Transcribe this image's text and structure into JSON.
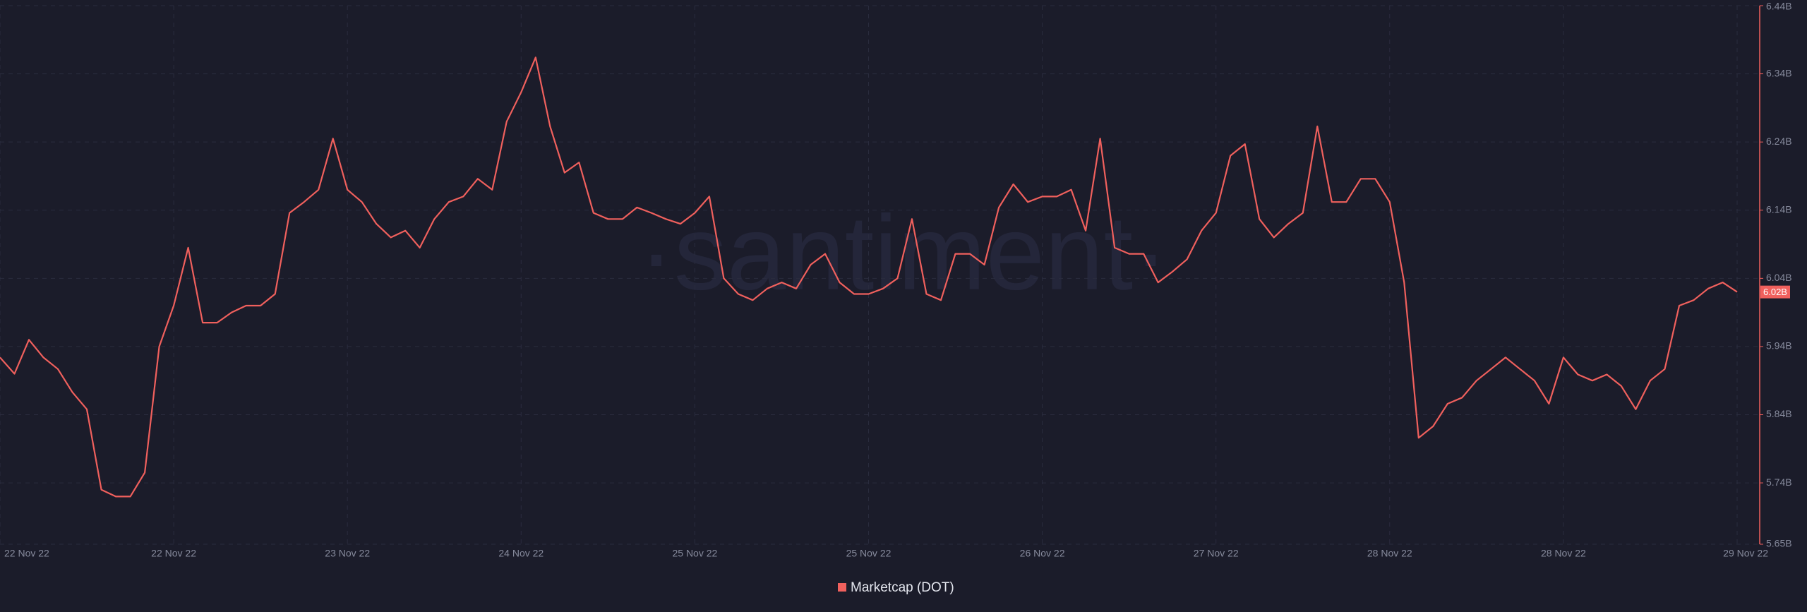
{
  "chart_data": {
    "type": "line",
    "watermark": "·santiment·",
    "background": "#1b1c2a",
    "grid": true,
    "categories": [
      "22 Nov 22",
      null,
      null,
      null,
      null,
      null,
      null,
      null,
      null,
      null,
      null,
      null,
      "22 Nov 22",
      null,
      null,
      null,
      null,
      null,
      null,
      null,
      null,
      null,
      null,
      null,
      "23 Nov 22",
      null,
      null,
      null,
      null,
      null,
      null,
      null,
      null,
      null,
      null,
      null,
      "24 Nov 22",
      null,
      null,
      null,
      null,
      null,
      null,
      null,
      null,
      null,
      null,
      null,
      "25 Nov 22",
      null,
      null,
      null,
      null,
      null,
      null,
      null,
      null,
      null,
      null,
      null,
      "25 Nov 22",
      null,
      null,
      null,
      null,
      null,
      null,
      null,
      null,
      null,
      null,
      null,
      "26 Nov 22",
      null,
      null,
      null,
      null,
      null,
      null,
      null,
      null,
      null,
      null,
      null,
      "27 Nov 22",
      null,
      null,
      null,
      null,
      null,
      null,
      null,
      null,
      null,
      null,
      null,
      "28 Nov 22",
      null,
      null,
      null,
      null,
      null,
      null,
      null,
      null,
      null,
      null,
      null,
      "28 Nov 22",
      null,
      null,
      null,
      null,
      null,
      null,
      null,
      null,
      null,
      null,
      null,
      "29 Nov 22"
    ],
    "series": [
      {
        "name": "Marketcap (DOT)",
        "color": "#f0605d",
        "values": [
          5.924,
          5.9,
          5.95,
          5.924,
          5.907,
          5.873,
          5.848,
          5.73,
          5.72,
          5.72,
          5.755,
          5.94,
          6.0,
          6.085,
          5.975,
          5.975,
          5.99,
          6.0,
          6.0,
          6.017,
          6.136,
          6.152,
          6.17,
          6.245,
          6.17,
          6.152,
          6.12,
          6.1,
          6.11,
          6.085,
          6.127,
          6.152,
          6.16,
          6.186,
          6.17,
          6.27,
          6.313,
          6.364,
          6.263,
          6.195,
          6.21,
          6.136,
          6.127,
          6.127,
          6.144,
          6.136,
          6.127,
          6.12,
          6.136,
          6.16,
          6.04,
          6.017,
          6.008,
          6.025,
          6.034,
          6.025,
          6.06,
          6.076,
          6.034,
          6.017,
          6.017,
          6.025,
          6.04,
          6.127,
          6.017,
          6.008,
          6.076,
          6.076,
          6.06,
          6.144,
          6.178,
          6.152,
          6.16,
          6.16,
          6.17,
          6.11,
          6.245,
          6.085,
          6.076,
          6.076,
          6.034,
          6.05,
          6.068,
          6.11,
          6.136,
          6.22,
          6.237,
          6.127,
          6.1,
          6.12,
          6.136,
          6.263,
          6.152,
          6.152,
          6.186,
          6.186,
          6.152,
          6.034,
          5.806,
          5.823,
          5.856,
          5.865,
          5.89,
          5.907,
          5.924,
          5.907,
          5.89,
          5.856,
          5.924,
          5.899,
          5.89,
          5.899,
          5.882,
          5.848,
          5.89,
          5.907,
          6.0,
          6.008,
          6.025,
          6.034,
          6.02
        ]
      }
    ],
    "last_value_tag": {
      "value": 6.02,
      "label": "6.02B"
    },
    "ylim": [
      5.65,
      6.44
    ],
    "yticks": [
      {
        "value": 5.65,
        "label": "5.65B"
      },
      {
        "value": 5.74,
        "label": "5.74B"
      },
      {
        "value": 5.84,
        "label": "5.84B"
      },
      {
        "value": 5.94,
        "label": "5.94B"
      },
      {
        "value": 6.04,
        "label": "6.04B"
      },
      {
        "value": 6.14,
        "label": "6.14B"
      },
      {
        "value": 6.24,
        "label": "6.24B"
      },
      {
        "value": 6.34,
        "label": "6.34B"
      },
      {
        "value": 6.44,
        "label": "6.44B"
      }
    ]
  }
}
